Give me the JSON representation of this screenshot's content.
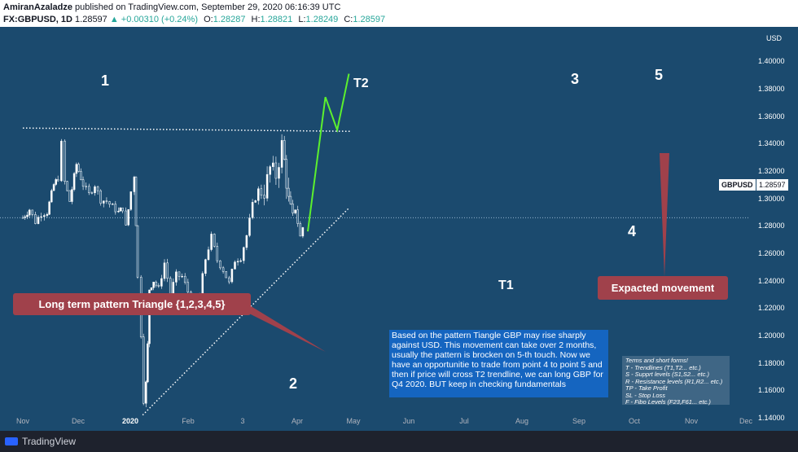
{
  "header": {
    "author": "AmiranAzaladze",
    "published_text": "published on TradingView.com, September 29, 2020 06:16:39 UTC",
    "symbol": "FX:GBPUSD, 1D",
    "last": "1.28597",
    "change": "▲ +0.00310 (+0.24%)",
    "o_label": "O:",
    "o_val": "1.28287",
    "h_label": "H:",
    "h_val": "1.28821",
    "l_label": "L:",
    "l_val": "1.28249",
    "c_label": "C:",
    "c_val": "1.28597"
  },
  "annotations": {
    "p1": "1",
    "p2": "2",
    "p3": "3",
    "p4": "4",
    "p5": "5",
    "t1": "T1",
    "t2": "T2",
    "callout_left": "Long term pattern Triangle {1,2,3,4,5}",
    "callout_right": "Expacted movement",
    "textbox": "Based on the pattern Tiangle GBP may rise sharply against USD. This movement can take over 2 months, usually the pattern is brocken on 5-th touch. Now we have an opportunitie to trade from point 4 to point 5 and then if price will cross T2 trendline, we can long GBP for Q4 2020. BUT keep in checking fundamentals",
    "legend_title": "Terms and short forms!",
    "legend_items": [
      "T - Trendlines (T1,T2... etc.)",
      "S - Supprt levels (S1,S2... etc.)",
      "R - Resistance levels (R1,R2... etc.)",
      "TP - Take Profit",
      "SL - Stop Loss",
      "F - Fibo Levels  (F23,F61... etc.)"
    ]
  },
  "price_tag": {
    "name": "GBPUSD",
    "value": "1.28597"
  },
  "footer": {
    "brand": "TradingView"
  },
  "colors": {
    "background": "#1b4a6e",
    "candle": "#ffffff",
    "trendline": "#ffffff",
    "projection": "#4caf50",
    "callout": "#a0414b",
    "textbox": "#1565c0"
  },
  "chart_data": {
    "type": "line",
    "title": "FX:GBPUSD, 1D",
    "ylabel": "USD",
    "y_unit": "USD",
    "ylim": [
      1.13,
      1.4
    ],
    "x_ticks": [
      "Nov",
      "Dec",
      "2020",
      "Feb",
      "3",
      "Apr",
      "May",
      "Jun",
      "Jul",
      "Aug",
      "Sep",
      "Oct",
      "Nov",
      "Dec"
    ],
    "y_ticks": [
      "1.40000",
      "1.38000",
      "1.36000",
      "1.34000",
      "1.32000",
      "1.30000",
      "1.28000",
      "1.26000",
      "1.24000",
      "1.22000",
      "1.20000",
      "1.18000",
      "1.16000",
      "1.14000"
    ],
    "series": [
      {
        "name": "GBPUSD",
        "values": [
          [
            "2019-10-28",
            1.286
          ],
          [
            "2019-11-05",
            1.292
          ],
          [
            "2019-11-12",
            1.283
          ],
          [
            "2019-11-19",
            1.289
          ],
          [
            "2019-11-26",
            1.29
          ],
          [
            "2019-12-04",
            1.31
          ],
          [
            "2019-12-09",
            1.315
          ],
          [
            "2019-12-13",
            1.34
          ],
          [
            "2019-12-17",
            1.312
          ],
          [
            "2019-12-23",
            1.298
          ],
          [
            "2019-12-31",
            1.325
          ],
          [
            "2020-01-08",
            1.31
          ],
          [
            "2020-01-15",
            1.303
          ],
          [
            "2020-01-22",
            1.31
          ],
          [
            "2020-01-29",
            1.299
          ],
          [
            "2020-02-05",
            1.298
          ],
          [
            "2020-02-12",
            1.294
          ],
          [
            "2020-02-19",
            1.29
          ],
          [
            "2020-02-24",
            1.293
          ],
          [
            "2020-02-28",
            1.279
          ],
          [
            "2020-03-05",
            1.305
          ],
          [
            "2020-03-09",
            1.317
          ],
          [
            "2020-03-11",
            1.282
          ],
          [
            "2020-03-13",
            1.242
          ],
          [
            "2020-03-17",
            1.201
          ],
          [
            "2020-03-20",
            1.153
          ],
          [
            "2020-03-23",
            1.165
          ],
          [
            "2020-03-25",
            1.193
          ],
          [
            "2020-03-27",
            1.234
          ],
          [
            "2020-04-01",
            1.24
          ],
          [
            "2020-04-07",
            1.234
          ],
          [
            "2020-04-14",
            1.253
          ],
          [
            "2020-04-21",
            1.231
          ],
          [
            "2020-04-28",
            1.244
          ],
          [
            "2020-05-05",
            1.243
          ],
          [
            "2020-05-12",
            1.232
          ],
          [
            "2020-05-19",
            1.223
          ],
          [
            "2020-05-26",
            1.23
          ],
          [
            "2020-06-02",
            1.256
          ],
          [
            "2020-06-09",
            1.272
          ],
          [
            "2020-06-16",
            1.255
          ],
          [
            "2020-06-23",
            1.248
          ],
          [
            "2020-06-30",
            1.238
          ],
          [
            "2020-07-07",
            1.255
          ],
          [
            "2020-07-14",
            1.257
          ],
          [
            "2020-07-21",
            1.273
          ],
          [
            "2020-07-28",
            1.295
          ],
          [
            "2020-08-04",
            1.306
          ],
          [
            "2020-08-11",
            1.305
          ],
          [
            "2020-08-18",
            1.322
          ],
          [
            "2020-08-25",
            1.317
          ],
          [
            "2020-09-01",
            1.339
          ],
          [
            "2020-09-04",
            1.327
          ],
          [
            "2020-09-09",
            1.298
          ],
          [
            "2020-09-14",
            1.284
          ],
          [
            "2020-09-17",
            1.293
          ],
          [
            "2020-09-23",
            1.272
          ],
          [
            "2020-09-29",
            1.286
          ]
        ]
      }
    ],
    "trendlines": [
      {
        "name": "T2",
        "from": [
          "2019-10-28",
          1.3514
        ],
        "to": [
          "2020-11-21",
          1.349
        ]
      },
      {
        "name": "T1",
        "from": [
          "2020-03-19",
          1.142
        ],
        "to": [
          "2020-11-20",
          1.293
        ]
      }
    ],
    "projection": [
      [
        "2020-10-02",
        1.276
      ],
      [
        "2020-10-23",
        1.374
      ],
      [
        "2020-11-06",
        1.35
      ],
      [
        "2020-11-20",
        1.391
      ]
    ],
    "last_price": 1.28597,
    "grid": false,
    "legend": "none"
  }
}
